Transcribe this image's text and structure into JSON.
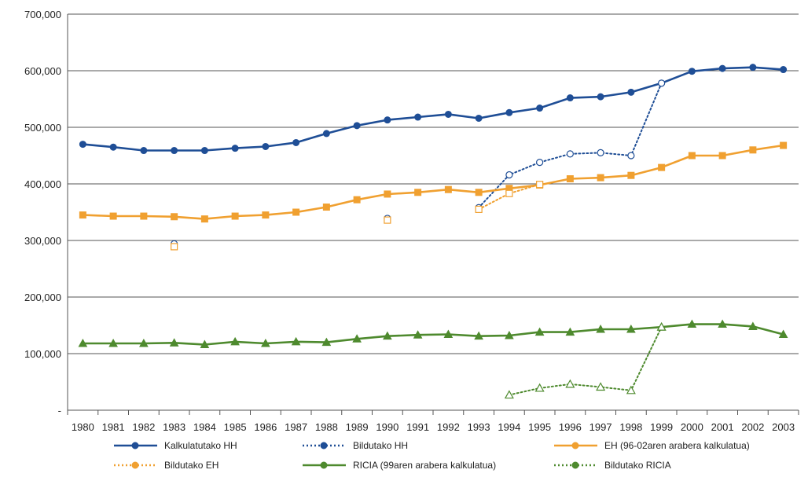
{
  "chart_data": {
    "type": "line",
    "title": "",
    "xlabel": "",
    "ylabel": "",
    "ylim": [
      0,
      700000
    ],
    "yticks": [
      {
        "value": 0,
        "label": "-"
      },
      {
        "value": 100000,
        "label": "100,000"
      },
      {
        "value": 200000,
        "label": "200,000"
      },
      {
        "value": 300000,
        "label": "300,000"
      },
      {
        "value": 400000,
        "label": "400,000"
      },
      {
        "value": 500000,
        "label": "500,000"
      },
      {
        "value": 600000,
        "label": "600,000"
      },
      {
        "value": 700000,
        "label": "700,000"
      }
    ],
    "categories": [
      "1980",
      "1981",
      "1982",
      "1983",
      "1984",
      "1985",
      "1986",
      "1987",
      "1988",
      "1989",
      "1990",
      "1991",
      "1992",
      "1993",
      "1994",
      "1995",
      "1996",
      "1997",
      "1998",
      "1999",
      "2000",
      "2001",
      "2002",
      "2003"
    ],
    "grid": "horizontal",
    "legend_position": "bottom",
    "series": [
      {
        "name": "Kalkulatutako HH",
        "color": "#1f4e96",
        "dash": "solid",
        "marker": "circle",
        "filled": true,
        "values": [
          470000,
          465000,
          459000,
          459000,
          459000,
          463000,
          466000,
          473000,
          489000,
          503000,
          513000,
          518000,
          523000,
          516000,
          526000,
          534000,
          552000,
          554000,
          562000,
          578000,
          599000,
          604000,
          606000,
          602000
        ]
      },
      {
        "name": "Bildutako HH",
        "color": "#1f4e96",
        "dash": "dotted",
        "marker": "circle",
        "filled": false,
        "values": [
          null,
          null,
          null,
          294000,
          null,
          null,
          null,
          null,
          null,
          null,
          339000,
          null,
          null,
          358000,
          416000,
          438000,
          453000,
          455000,
          450000,
          578000,
          null,
          null,
          null,
          null
        ]
      },
      {
        "name": "EH (96-02aren arabera kalkulatua)",
        "color": "#f0a030",
        "dash": "solid",
        "marker": "square",
        "filled": true,
        "values": [
          345000,
          343000,
          343000,
          342000,
          338000,
          343000,
          345000,
          350000,
          359000,
          372000,
          382000,
          385000,
          390000,
          385000,
          392000,
          398000,
          409000,
          411000,
          415000,
          429000,
          450000,
          450000,
          460000,
          468000
        ]
      },
      {
        "name": "Bildutako EH",
        "color": "#f0a030",
        "dash": "dotted",
        "marker": "square",
        "filled": false,
        "values": [
          null,
          null,
          null,
          289000,
          null,
          null,
          null,
          null,
          null,
          null,
          336000,
          null,
          null,
          355000,
          383000,
          399000,
          null,
          null,
          null,
          null,
          null,
          null,
          null,
          null
        ]
      },
      {
        "name": "RICIA (99aren arabera kalkulatua)",
        "color": "#4e8a2e",
        "dash": "solid",
        "marker": "triangle",
        "filled": true,
        "values": [
          118000,
          118000,
          118000,
          119000,
          116000,
          121000,
          118000,
          121000,
          120000,
          126000,
          131000,
          133000,
          134000,
          131000,
          132000,
          138000,
          138000,
          143000,
          143000,
          147000,
          152000,
          152000,
          148000,
          134000
        ]
      },
      {
        "name": "Bildutako RICIA",
        "color": "#4e8a2e",
        "dash": "dotted",
        "marker": "triangle",
        "filled": false,
        "values": [
          null,
          null,
          null,
          null,
          null,
          null,
          null,
          null,
          null,
          null,
          null,
          null,
          null,
          null,
          27000,
          39000,
          46000,
          41000,
          35000,
          147000,
          null,
          null,
          null,
          null
        ]
      }
    ]
  }
}
